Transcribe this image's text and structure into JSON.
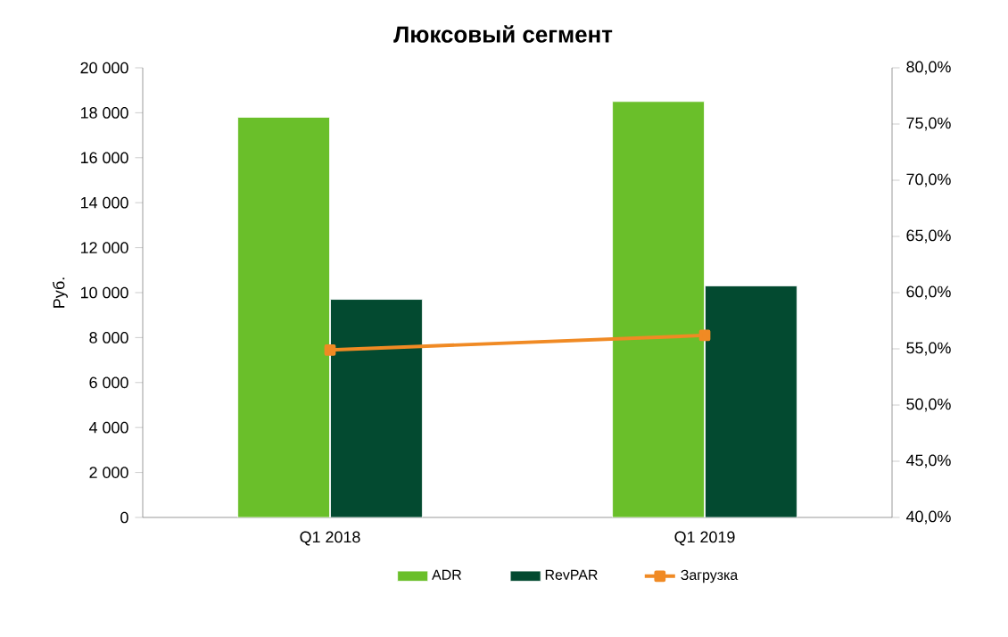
{
  "chart_data": {
    "type": "bar",
    "title": "Люксовый сегмент",
    "ylabel": "Руб.",
    "categories": [
      "Q1 2018",
      "Q1 2019"
    ],
    "series": [
      {
        "name": "ADR",
        "color": "#6abf2a",
        "values": [
          17800,
          18500
        ]
      },
      {
        "name": "RevPAR",
        "color": "#034a30",
        "values": [
          9700,
          10300
        ]
      },
      {
        "name": "Загрузка",
        "type": "line",
        "axis": "y2",
        "color": "#f08a24",
        "marker": "square",
        "line_style": "solid",
        "values": [
          54.9,
          56.2
        ]
      }
    ],
    "ylim": [
      0,
      20000
    ],
    "yticks": [
      {
        "value": 0,
        "label": "0"
      },
      {
        "value": 2000,
        "label": "2 000"
      },
      {
        "value": 4000,
        "label": "4 000"
      },
      {
        "value": 6000,
        "label": "6 000"
      },
      {
        "value": 8000,
        "label": "8 000"
      },
      {
        "value": 10000,
        "label": "10 000"
      },
      {
        "value": 12000,
        "label": "12 000"
      },
      {
        "value": 14000,
        "label": "14 000"
      },
      {
        "value": 16000,
        "label": "16 000"
      },
      {
        "value": 18000,
        "label": "18 000"
      },
      {
        "value": 20000,
        "label": "20 000"
      }
    ],
    "y2lim": [
      40,
      80
    ],
    "y2ticks": [
      {
        "value": 40,
        "label": "40,0%"
      },
      {
        "value": 45,
        "label": "45,0%"
      },
      {
        "value": 50,
        "label": "50,0%"
      },
      {
        "value": 55,
        "label": "55,0%"
      },
      {
        "value": 60,
        "label": "60,0%"
      },
      {
        "value": 65,
        "label": "65,0%"
      },
      {
        "value": 70,
        "label": "70,0%"
      },
      {
        "value": 75,
        "label": "75,0%"
      },
      {
        "value": 80,
        "label": "80,0%"
      }
    ],
    "legend": "bottom",
    "grid": false
  }
}
